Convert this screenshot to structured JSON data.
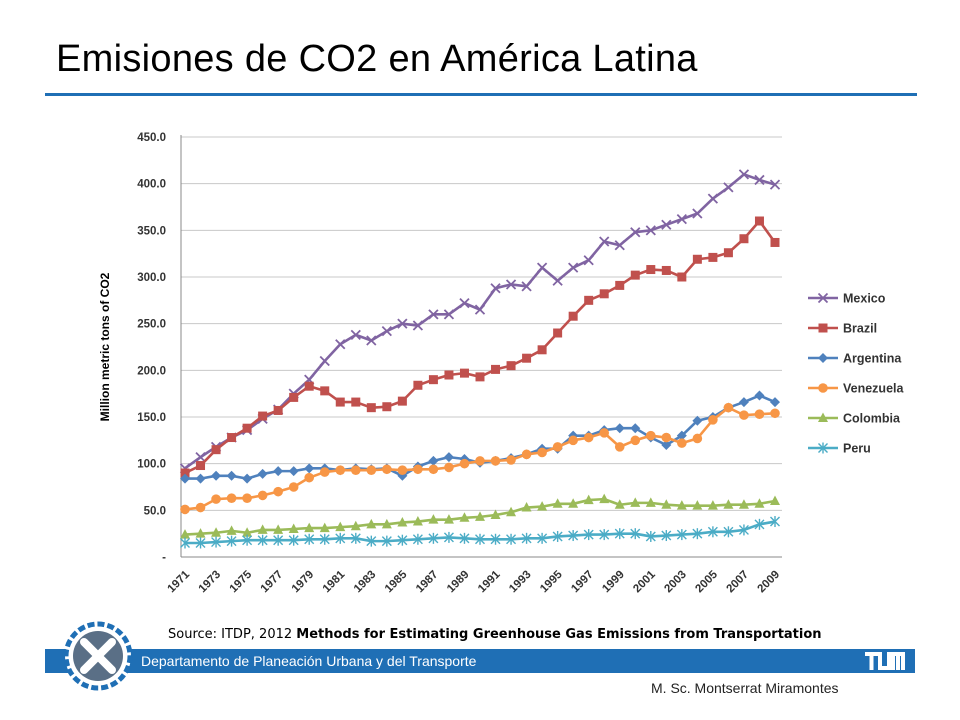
{
  "slide": {
    "title": "Emisiones de CO2 en América Latina",
    "source_prefix": "Source: ITDP, 2012 ",
    "source_title": "Methods for Estimating Greenhouse Gas Emissions from Transportation",
    "department": "Departamento de Planeación Urbana y del Transporte",
    "author": "M. Sc. Montserrat Miramontes",
    "accent_color": "#1f6fb5",
    "logo_icon": "x-circle-logo-icon",
    "brand_icon": "tum-logo-icon"
  },
  "chart_data": {
    "type": "line",
    "title": "",
    "xlabel": "",
    "ylabel": "Million metric tons of CO2",
    "ylim": [
      0,
      450
    ],
    "yticks": [
      "-",
      "50.0",
      "100.0",
      "150.0",
      "200.0",
      "250.0",
      "300.0",
      "350.0",
      "400.0",
      "450.0"
    ],
    "grid": "horizontal",
    "legend_position": "right",
    "x": [
      1971,
      1972,
      1973,
      1974,
      1975,
      1976,
      1977,
      1978,
      1979,
      1980,
      1981,
      1982,
      1983,
      1984,
      1985,
      1986,
      1987,
      1988,
      1989,
      1990,
      1991,
      1992,
      1993,
      1994,
      1995,
      1996,
      1997,
      1998,
      1999,
      2000,
      2001,
      2002,
      2003,
      2004,
      2005,
      2006,
      2007,
      2008,
      2009
    ],
    "xtick_labels": [
      "1971",
      "1973",
      "1975",
      "1977",
      "1979",
      "1981",
      "1983",
      "1985",
      "1987",
      "1989",
      "1991",
      "1993",
      "1995",
      "1997",
      "1999",
      "2001",
      "2003",
      "2005",
      "2007",
      "2009"
    ],
    "series": [
      {
        "name": "Mexico",
        "color": "#8064a2",
        "marker": "x",
        "values": [
          95,
          107,
          118,
          128,
          136,
          148,
          158,
          175,
          190,
          210,
          228,
          238,
          232,
          242,
          250,
          248,
          260,
          260,
          272,
          265,
          288,
          292,
          290,
          310,
          296,
          310,
          318,
          338,
          334,
          348,
          350,
          356,
          362,
          368,
          384,
          396,
          410,
          404,
          399
        ]
      },
      {
        "name": "Brazil",
        "color": "#c0504d",
        "marker": "square",
        "values": [
          90,
          98,
          115,
          128,
          138,
          151,
          157,
          171,
          183,
          178,
          166,
          166,
          160,
          161,
          167,
          184,
          190,
          195,
          197,
          193,
          201,
          205,
          213,
          222,
          240,
          258,
          275,
          282,
          291,
          302,
          308,
          307,
          300,
          319,
          321,
          326,
          341,
          360,
          337
        ]
      },
      {
        "name": "Argentina",
        "color": "#4f81bd",
        "marker": "diamond",
        "values": [
          84,
          84,
          87,
          87,
          84,
          89,
          92,
          92,
          95,
          95,
          93,
          95,
          94,
          95,
          87,
          97,
          103,
          107,
          105,
          101,
          103,
          106,
          110,
          116,
          116,
          130,
          130,
          136,
          138,
          138,
          128,
          120,
          130,
          146,
          150,
          160,
          166,
          173,
          166
        ]
      },
      {
        "name": "Venezuela",
        "color": "#f79646",
        "marker": "circle",
        "values": [
          51,
          53,
          62,
          63,
          63,
          66,
          70,
          75,
          85,
          91,
          93,
          93,
          93,
          94,
          93,
          94,
          94,
          96,
          100,
          103,
          103,
          104,
          110,
          112,
          118,
          125,
          128,
          133,
          118,
          125,
          130,
          128,
          122,
          127,
          147,
          160,
          152,
          153,
          154
        ]
      },
      {
        "name": "Colombia",
        "color": "#9bbb59",
        "marker": "triangle",
        "values": [
          24,
          25,
          26,
          28,
          26,
          29,
          29,
          30,
          31,
          31,
          32,
          33,
          35,
          35,
          37,
          38,
          40,
          40,
          42,
          43,
          45,
          48,
          53,
          54,
          57,
          57,
          61,
          62,
          56,
          58,
          58,
          56,
          55,
          55,
          55,
          56,
          56,
          57,
          60
        ]
      },
      {
        "name": "Peru",
        "color": "#4bacc6",
        "marker": "star",
        "values": [
          15,
          15,
          16,
          17,
          18,
          18,
          18,
          18,
          19,
          19,
          20,
          20,
          17,
          17,
          18,
          19,
          20,
          21,
          20,
          19,
          19,
          19,
          20,
          20,
          22,
          23,
          24,
          24,
          25,
          25,
          22,
          23,
          24,
          25,
          27,
          27,
          29,
          35,
          38
        ]
      }
    ]
  }
}
